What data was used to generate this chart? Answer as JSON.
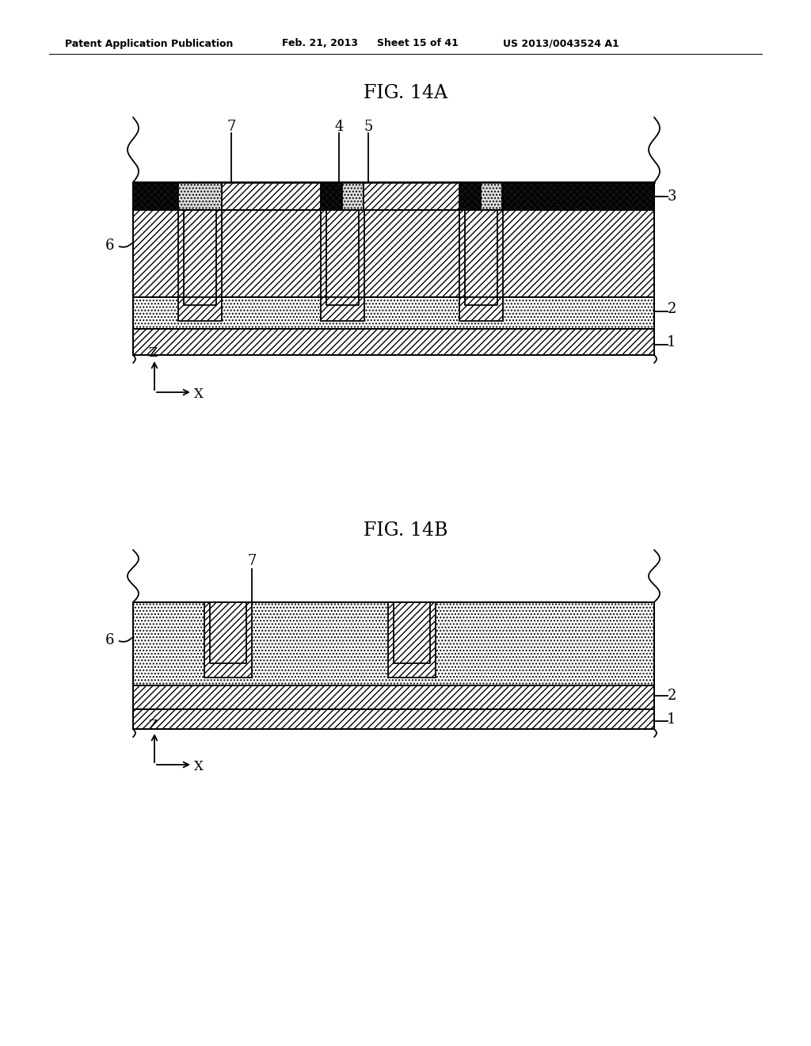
{
  "bg_color": "#ffffff",
  "header_text": "Patent Application Publication",
  "header_date": "Feb. 21, 2013",
  "header_sheet": "Sheet 15 of 41",
  "header_patent": "US 2013/0043524 A1",
  "fig_title_A": "FIG. 14A",
  "fig_title_B": "FIG. 14B",
  "line_color": "#000000"
}
